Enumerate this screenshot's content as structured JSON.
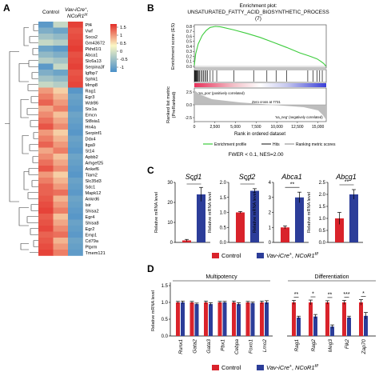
{
  "panel_labels": {
    "a": "A",
    "b": "B",
    "c": "C",
    "d": "D"
  },
  "heatmap": {
    "col_labels": [
      "Control",
      "Vav-iCre",
      "+",
      ", ",
      "NCoR1",
      "f/f"
    ],
    "genes": [
      "Pf4",
      "Vwf",
      "Socs2",
      "Gm43672",
      "Pkhd1l1",
      "Abca1",
      "Slc6a13",
      "Serpina3f",
      "Igfbp7",
      "Sphk1",
      "Mmp8",
      "Rag1",
      "Egr3",
      "Wdr86",
      "Stx1a",
      "Emcn",
      "St8sia1",
      "Hn4a",
      "Serpinf1",
      "Ddx4",
      "Itga9",
      "St14",
      "Apbb2",
      "Arhgef25",
      "Ankef6",
      "Tiam2",
      "Slc35d3",
      "Sdc1",
      "Mapk12",
      "Ankrd6",
      "Isir",
      "Shisa2",
      "Egr4",
      "Shisa8",
      "Egr2",
      "Emp1",
      "Cd79a",
      "Ptprm",
      "Tmem121"
    ],
    "legend_ticks": [
      "1.5",
      "1",
      "0.5",
      "0",
      "-0.5",
      "-1"
    ],
    "colors": {
      "high": "#e32d28",
      "mid": "#fbf7c4",
      "low": "#4a8fc8"
    }
  },
  "gsea": {
    "title_line1": "Enrichment plot:",
    "title_line2": "UNSATURATED_FATTY_ACID_BIOSYNTHETIC_PROCESS",
    "title_line3": "(7)",
    "ylabel_top": "Enrichment score (ES)",
    "ylabel_bottom_1": "Ranked list metric",
    "ylabel_bottom_2": "(PreRanked)",
    "xlabel": "Rank in ordered dataset",
    "es_ticks": [
      "0.8",
      "0.7",
      "0.6",
      "0.5",
      "0.4",
      "0.3",
      "0.2",
      "0.1",
      "0.0"
    ],
    "metric_ticks": [
      "2.5",
      "0.0",
      "-2.5"
    ],
    "x_ticks": [
      "0",
      "2,500",
      "5,000",
      "7,500",
      "10,000",
      "12,500",
      "15,000"
    ],
    "pos_label": "'na_pos' (positively correlated)",
    "neg_label": "'na_neg' (negatively correlated)",
    "zero_cross": "Zero cross at 7731",
    "legend": [
      "Enrichment profile",
      "Hits",
      "Ranking metric scores"
    ],
    "stats": "FWER < 0.1, NES=2.00",
    "colors": {
      "curve": "#3dcc3d"
    }
  },
  "chart_data": [
    {
      "type": "bar",
      "title": "Scd1",
      "ylabel": "Relative mRNA level",
      "ylim": [
        0,
        30
      ],
      "ticks": [
        "0",
        "10",
        "20",
        "30"
      ],
      "categories": [
        "Control",
        "Vav-iCre+, NCoR1f/f"
      ],
      "values": [
        1,
        24
      ],
      "errors": [
        0.5,
        3.5
      ],
      "significance": "**"
    },
    {
      "type": "bar",
      "title": "Scd2",
      "ylabel": "Relative mRNA level",
      "ylim": [
        0,
        2.0
      ],
      "ticks": [
        "0.0",
        "0.5",
        "1.0",
        "1.5",
        "2.0"
      ],
      "categories": [
        "Control",
        "Vav-iCre+, NCoR1f/f"
      ],
      "values": [
        1.0,
        1.72
      ],
      "errors": [
        0.03,
        0.07
      ],
      "significance": "**"
    },
    {
      "type": "bar",
      "title": "Abca1",
      "ylabel": "Relative mRNA level",
      "ylim": [
        0,
        4
      ],
      "ticks": [
        "0",
        "1",
        "2",
        "3",
        "4"
      ],
      "categories": [
        "Control",
        "Vav-iCre+, NCoR1f/f"
      ],
      "values": [
        1.0,
        3.0
      ],
      "errors": [
        0.1,
        0.35
      ],
      "significance": "**"
    },
    {
      "type": "bar",
      "title": "Abcg1",
      "ylabel": "Relative mRNA level",
      "ylim": [
        0,
        2.5
      ],
      "ticks": [
        "0.0",
        "0.5",
        "1.0",
        "1.5",
        "2.0",
        "2.5"
      ],
      "categories": [
        "Control",
        "Vav-iCre+, NCoR1f/f"
      ],
      "values": [
        1.0,
        2.0
      ],
      "errors": [
        0.25,
        0.2
      ],
      "significance": "**"
    },
    {
      "type": "bar",
      "ylabel": "Relative mRNA level",
      "ylim": [
        0,
        1.5
      ],
      "ticks": [
        "0.0",
        "0.5",
        "1.0",
        "1.5"
      ],
      "groups": [
        {
          "label": "Multipotency",
          "categories": [
            "Runx1",
            "Gata2",
            "Gata3",
            "Pbx1",
            "Cebpa",
            "Foxo1",
            "Lmo2"
          ]
        },
        {
          "label": "Differentiation",
          "categories": [
            "Rag1",
            "Rag2",
            "Meg3",
            "Flk2",
            "Zap70"
          ]
        }
      ],
      "categories": [
        "Runx1",
        "Gata2",
        "Gata3",
        "Pbx1",
        "Cebpa",
        "Foxo1",
        "Lmo2",
        "Rag1",
        "Rag2",
        "Meg3",
        "Flk2",
        "Zap70"
      ],
      "series": [
        {
          "name": "Control",
          "values": [
            1.0,
            1.0,
            1.0,
            1.0,
            1.0,
            1.0,
            1.0,
            1.0,
            1.0,
            1.0,
            1.0,
            1.0
          ],
          "errors": [
            0.03,
            0.03,
            0.04,
            0.03,
            0.04,
            0.03,
            0.04,
            0.06,
            0.07,
            0.05,
            0.06,
            0.08
          ]
        },
        {
          "name": "Vav-iCre+, NCoR1f/f",
          "values": [
            1.0,
            0.95,
            0.95,
            1.0,
            0.95,
            0.98,
            1.0,
            0.55,
            0.58,
            0.28,
            0.55,
            0.6
          ],
          "errors": [
            0.04,
            0.03,
            0.04,
            0.03,
            0.04,
            0.03,
            0.05,
            0.04,
            0.06,
            0.05,
            0.04,
            0.1
          ]
        }
      ],
      "significance": [
        "",
        "",
        "",
        "",
        "",
        "",
        "",
        "**",
        "*",
        "**",
        "***",
        "*"
      ]
    }
  ],
  "legend": {
    "control": "Control",
    "ko_main": "Vav-iCre",
    "ko_sup1": "+",
    "ko_mid": ", ",
    "ko_main2": "NCoR1",
    "ko_sup2": "f/f"
  },
  "colors": {
    "control": "#d9232b",
    "ko": "#2c3d99"
  }
}
